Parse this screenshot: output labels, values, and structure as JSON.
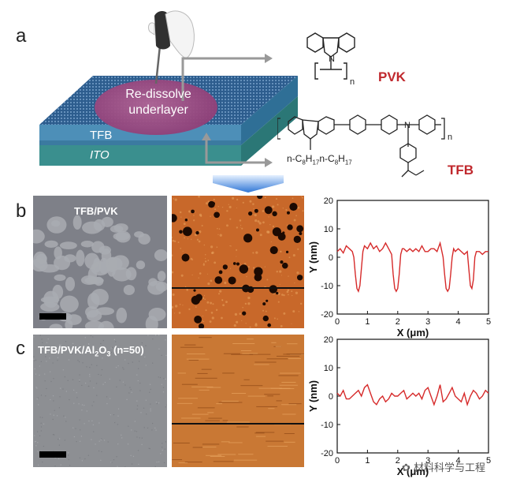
{
  "panels": {
    "a": {
      "letter": "a",
      "device_text": "Re-dissolve underlayer",
      "device_text_line1": "Re-dissolve",
      "device_text_line2": "underlayer",
      "layer1": "TFB",
      "layer2": "ITO",
      "pvk_label": "PVK",
      "tfb_label": "TFB",
      "pvk_subscript": "n",
      "tfb_subscript": "n",
      "tfb_sidechain": "n-C8H17n-C8H17",
      "side_prefix": "n-C",
      "side_sub": "8",
      "side_mid": "H",
      "side_sub2": "17"
    },
    "b": {
      "letter": "b",
      "sem_label": "TFB/PVK"
    },
    "c": {
      "letter": "c",
      "sem_label": "TFB/PVK/Al2O3 (n=50)",
      "sem_label_main": "TFB/PVK/Al",
      "sem_label_sub": "2",
      "sem_label_o": "O",
      "sem_label_sub2": "3",
      "sem_label_tail": " (n=50)"
    }
  },
  "watermark": "材料科学与工程",
  "chart_data": [
    {
      "type": "line",
      "xlabel": "X (μm)",
      "ylabel": "Y (nm)",
      "xlim": [
        0,
        5
      ],
      "ylim": [
        -20,
        20
      ],
      "xticks": [
        0,
        1,
        2,
        3,
        4,
        5
      ],
      "yticks": [
        -20,
        -10,
        0,
        10,
        20
      ],
      "series": [
        {
          "color": "#d62a2a",
          "x": [
            0,
            0.1,
            0.2,
            0.3,
            0.4,
            0.5,
            0.55,
            0.6,
            0.65,
            0.7,
            0.75,
            0.8,
            0.85,
            0.9,
            1.0,
            1.1,
            1.2,
            1.3,
            1.4,
            1.5,
            1.6,
            1.7,
            1.8,
            1.85,
            1.9,
            1.95,
            2.0,
            2.05,
            2.1,
            2.15,
            2.2,
            2.3,
            2.4,
            2.5,
            2.6,
            2.7,
            2.8,
            2.9,
            3.0,
            3.1,
            3.2,
            3.3,
            3.4,
            3.5,
            3.55,
            3.6,
            3.65,
            3.7,
            3.75,
            3.8,
            3.85,
            3.9,
            4.0,
            4.1,
            4.2,
            4.3,
            4.35,
            4.4,
            4.45,
            4.5,
            4.55,
            4.6,
            4.7,
            4.8,
            4.9,
            5.0
          ],
          "y": [
            2,
            3,
            1.5,
            4,
            3,
            2,
            0,
            -6,
            -11,
            -12,
            -10,
            -4,
            2,
            4,
            3,
            5,
            3,
            4,
            2,
            3,
            5,
            3,
            1,
            -6,
            -11,
            -12,
            -11,
            -6,
            1,
            3,
            3,
            2,
            3,
            2,
            3,
            2,
            4,
            2,
            2,
            3,
            3,
            2,
            5,
            0,
            -6,
            -11,
            -12,
            -11,
            -6,
            0,
            3,
            2,
            3,
            2,
            1,
            2,
            -4,
            -10,
            -11,
            -8,
            0,
            2,
            2,
            1,
            2,
            2
          ]
        }
      ]
    },
    {
      "type": "line",
      "xlabel": "X (μm)",
      "ylabel": "Y (nm)",
      "xlim": [
        0,
        5
      ],
      "ylim": [
        -20,
        20
      ],
      "xticks": [
        0,
        1,
        2,
        3,
        4,
        5
      ],
      "yticks": [
        -20,
        -10,
        0,
        10,
        20
      ],
      "series": [
        {
          "color": "#d62a2a",
          "x": [
            0,
            0.1,
            0.2,
            0.3,
            0.4,
            0.5,
            0.6,
            0.7,
            0.8,
            0.9,
            1.0,
            1.1,
            1.2,
            1.3,
            1.4,
            1.5,
            1.6,
            1.7,
            1.8,
            1.9,
            2.0,
            2.1,
            2.2,
            2.3,
            2.4,
            2.5,
            2.6,
            2.7,
            2.8,
            2.9,
            3.0,
            3.1,
            3.2,
            3.3,
            3.4,
            3.5,
            3.6,
            3.7,
            3.8,
            3.9,
            4.0,
            4.1,
            4.2,
            4.3,
            4.4,
            4.5,
            4.6,
            4.7,
            4.8,
            4.9,
            5.0
          ],
          "y": [
            1,
            0,
            2,
            -1,
            -1,
            0,
            1,
            2,
            0,
            3,
            4,
            1,
            -2,
            -3,
            -1,
            0,
            -2,
            -1,
            1,
            0,
            0,
            1,
            2,
            -1,
            0,
            1,
            0,
            1,
            -1,
            2,
            3,
            0,
            -3,
            0,
            4,
            -2,
            -1,
            1,
            3,
            0,
            -1,
            -2,
            1,
            -3,
            0,
            2,
            1,
            -1,
            0,
            2,
            1
          ]
        }
      ]
    }
  ]
}
